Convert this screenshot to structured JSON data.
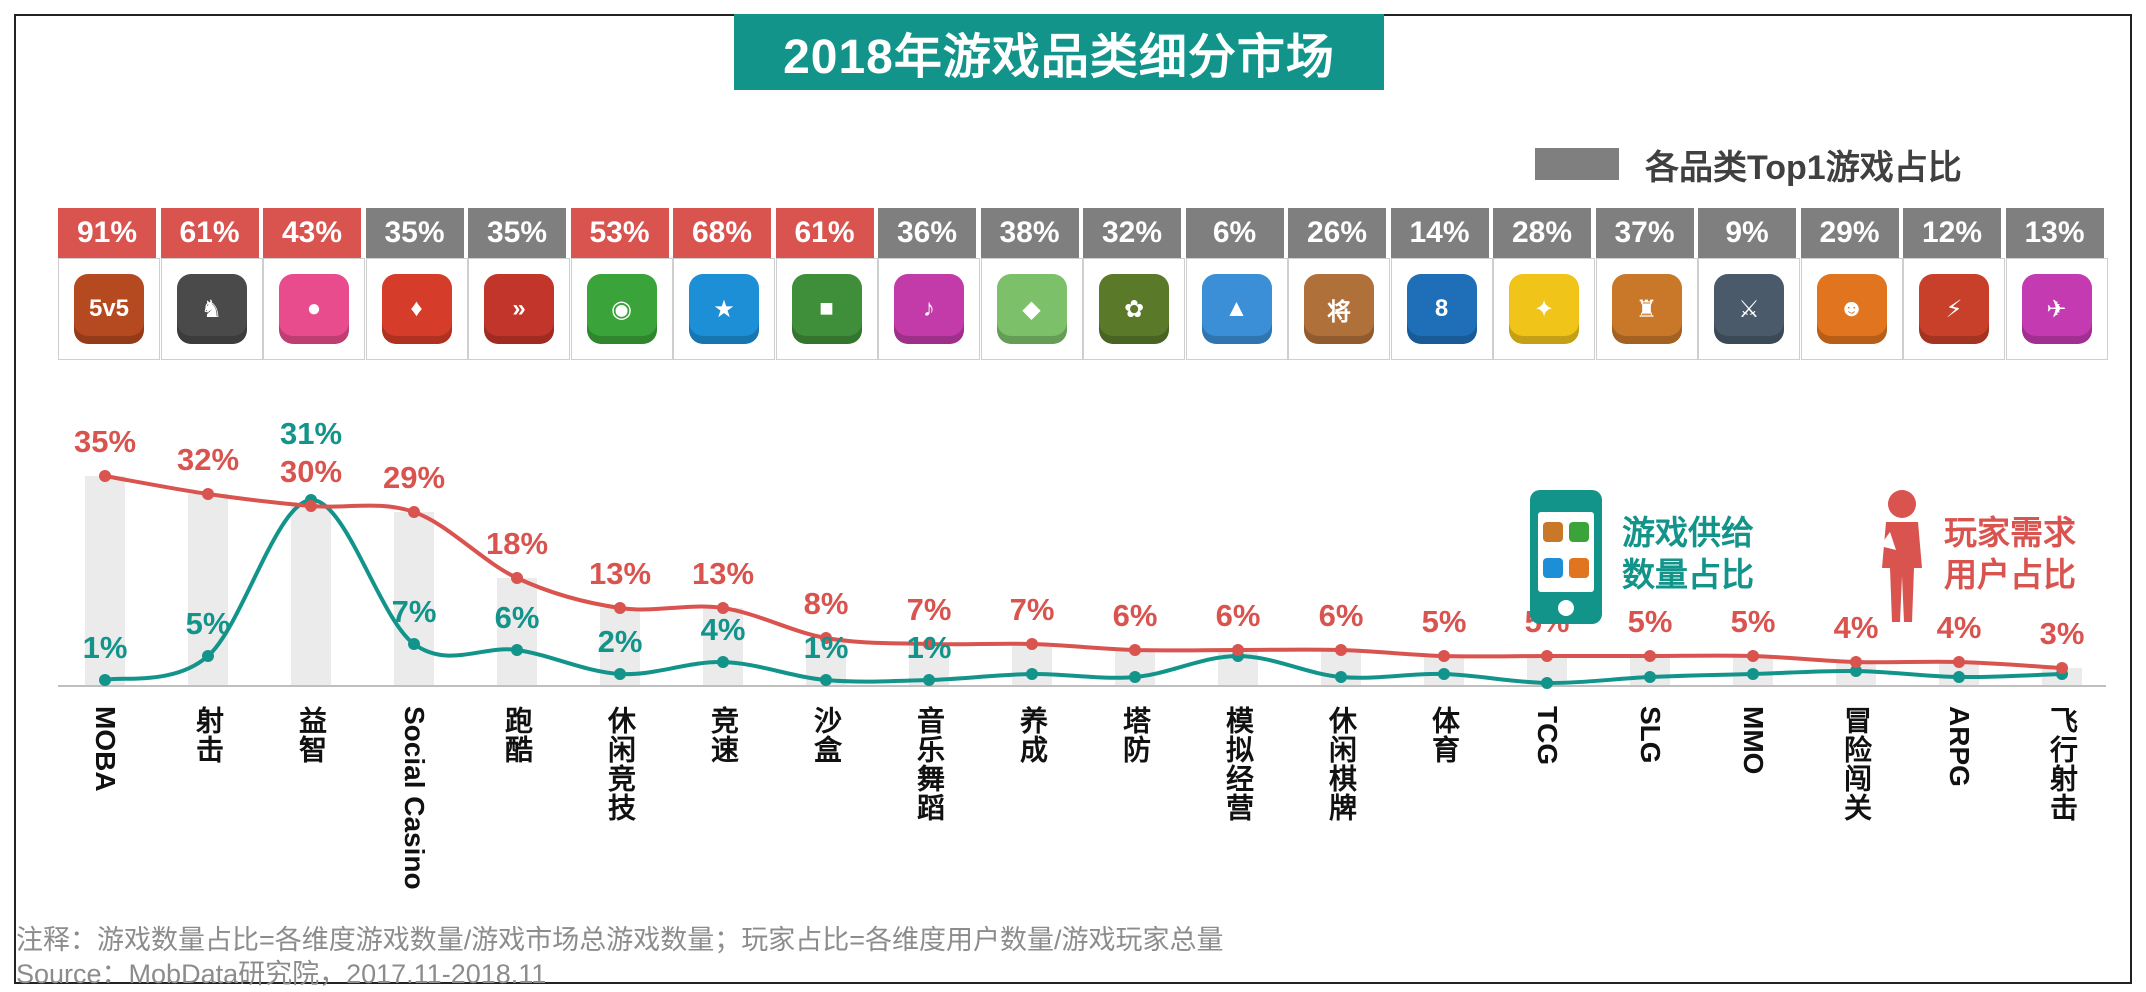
{
  "title": "2018年游戏品类细分市场",
  "top1_legend": {
    "label": "各品类Top1游戏占比",
    "color": "#7f7f7f"
  },
  "colors": {
    "demand": "#d9534f",
    "supply": "#12948a",
    "highlight_cell": "#d9534f",
    "normal_cell": "#7f7f7f",
    "bar": "#ebebeb"
  },
  "table": [
    {
      "category": "MOBA",
      "top1": "91%",
      "highlighted": true,
      "icon": "honor-of-kings-icon",
      "icon_color": "#b5491f",
      "icon_glyph": "5v5"
    },
    {
      "category": "射击",
      "top1": "61%",
      "highlighted": true,
      "icon": "pubg-mobile-icon",
      "icon_color": "#4a4a4a",
      "icon_glyph": "♞"
    },
    {
      "category": "益智",
      "top1": "43%",
      "highlighted": true,
      "icon": "happy-elimination-icon",
      "icon_color": "#e84c8c",
      "icon_glyph": "●"
    },
    {
      "category": "Social Casino",
      "top1": "35%",
      "highlighted": false,
      "icon": "casino-game-icon",
      "icon_color": "#d63c2a",
      "icon_glyph": "♦"
    },
    {
      "category": "跑酷",
      "top1": "35%",
      "highlighted": false,
      "icon": "subway-surfers-icon",
      "icon_color": "#c2352a",
      "icon_glyph": "»"
    },
    {
      "category": "休闲竞技",
      "top1": "53%",
      "highlighted": true,
      "icon": "green-monster-icon",
      "icon_color": "#3aa43a",
      "icon_glyph": "◉"
    },
    {
      "category": "竞速",
      "top1": "68%",
      "highlighted": true,
      "icon": "qq-speed-icon",
      "icon_color": "#1d8fd6",
      "icon_glyph": "★"
    },
    {
      "category": "沙盒",
      "top1": "61%",
      "highlighted": true,
      "icon": "mini-world-icon",
      "icon_color": "#3f8f3a",
      "icon_glyph": "■"
    },
    {
      "category": "音乐舞蹈",
      "top1": "36%",
      "highlighted": false,
      "icon": "dance-game-icon",
      "icon_color": "#c23ba8",
      "icon_glyph": "♪"
    },
    {
      "category": "养成",
      "top1": "38%",
      "highlighted": false,
      "icon": "travel-frog-icon",
      "icon_color": "#7cc06a",
      "icon_glyph": "◆"
    },
    {
      "category": "塔防",
      "top1": "32%",
      "highlighted": false,
      "icon": "plants-vs-zombies-icon",
      "icon_color": "#5a7a2a",
      "icon_glyph": "✿"
    },
    {
      "category": "模拟经营",
      "top1": "6%",
      "highlighted": false,
      "icon": "hay-day-chicken-icon",
      "icon_color": "#3b8fd6",
      "icon_glyph": "▲"
    },
    {
      "category": "休闲棋牌",
      "top1": "26%",
      "highlighted": false,
      "icon": "chinese-chess-icon",
      "icon_color": "#b0703a",
      "icon_glyph": "将"
    },
    {
      "category": "体育",
      "top1": "14%",
      "highlighted": false,
      "icon": "billiards-icon",
      "icon_color": "#1f6fb8",
      "icon_glyph": "8"
    },
    {
      "category": "TCG",
      "top1": "28%",
      "highlighted": false,
      "icon": "card-game-icon",
      "icon_color": "#f0c419",
      "icon_glyph": "✦"
    },
    {
      "category": "SLG",
      "top1": "37%",
      "highlighted": false,
      "icon": "clash-of-clans-icon",
      "icon_color": "#c9782a",
      "icon_glyph": "♜"
    },
    {
      "category": "MMO",
      "top1": "9%",
      "highlighted": false,
      "icon": "mmo-hero-icon",
      "icon_color": "#4a5a6a",
      "icon_glyph": "⚔"
    },
    {
      "category": "冒险闯关",
      "top1": "29%",
      "highlighted": false,
      "icon": "pumpkin-adventure-icon",
      "icon_color": "#e0741f",
      "icon_glyph": "☻"
    },
    {
      "category": "ARPG",
      "top1": "12%",
      "highlighted": false,
      "icon": "arpg-warrior-icon",
      "icon_color": "#c8402a",
      "icon_glyph": "⚡"
    },
    {
      "category": "飞行射击",
      "top1": "13%",
      "highlighted": false,
      "icon": "thunder-shooter-icon",
      "icon_color": "#c43ab0",
      "icon_glyph": "✈"
    }
  ],
  "chart_data": {
    "type": "line",
    "categories": [
      "MOBA",
      "射击",
      "益智",
      "Social Casino",
      "跑酷",
      "休闲竞技",
      "竞速",
      "沙盒",
      "音乐舞蹈",
      "养成",
      "塔防",
      "模拟经营",
      "休闲棋牌",
      "体育",
      "TCG",
      "SLG",
      "MMO",
      "冒险闯关",
      "ARPG",
      "飞行射击"
    ],
    "series": [
      {
        "name": "玩家需求用户占比",
        "values": [
          35,
          32,
          30,
          29,
          18,
          13,
          13,
          8,
          7,
          7,
          6,
          6,
          6,
          5,
          5,
          5,
          5,
          4,
          4,
          3
        ],
        "labels": [
          "35%",
          "32%",
          "30%",
          "29%",
          "18%",
          "13%",
          "13%",
          "8%",
          "7%",
          "7%",
          "6%",
          "6%",
          "6%",
          "5%",
          "5%",
          "5%",
          "5%",
          "4%",
          "4%",
          "3%"
        ]
      },
      {
        "name": "游戏供给数量占比",
        "values": [
          1,
          5,
          31,
          7,
          6,
          2,
          4,
          1,
          1,
          2,
          1.5,
          5,
          1.5,
          2,
          0.5,
          1.5,
          2,
          2.5,
          1.5,
          2
        ],
        "labels": [
          "1%",
          "5%",
          "31%",
          "7%",
          "6%",
          "2%",
          "4%",
          "1%",
          "1%",
          "",
          "",
          "",
          "",
          "",
          "",
          "",
          "",
          "",
          "",
          ""
        ]
      }
    ],
    "ylim": [
      0,
      36
    ]
  },
  "supply_legend": "游戏供给数量占比",
  "demand_legend": "玩家需求用户占比",
  "note": "注释：游戏数量占比=各维度游戏数量/游戏市场总游戏数量；玩家占比=各维度用户数量/游戏玩家总量",
  "source": "Source：MobData研究院，2017.11-2018.11"
}
